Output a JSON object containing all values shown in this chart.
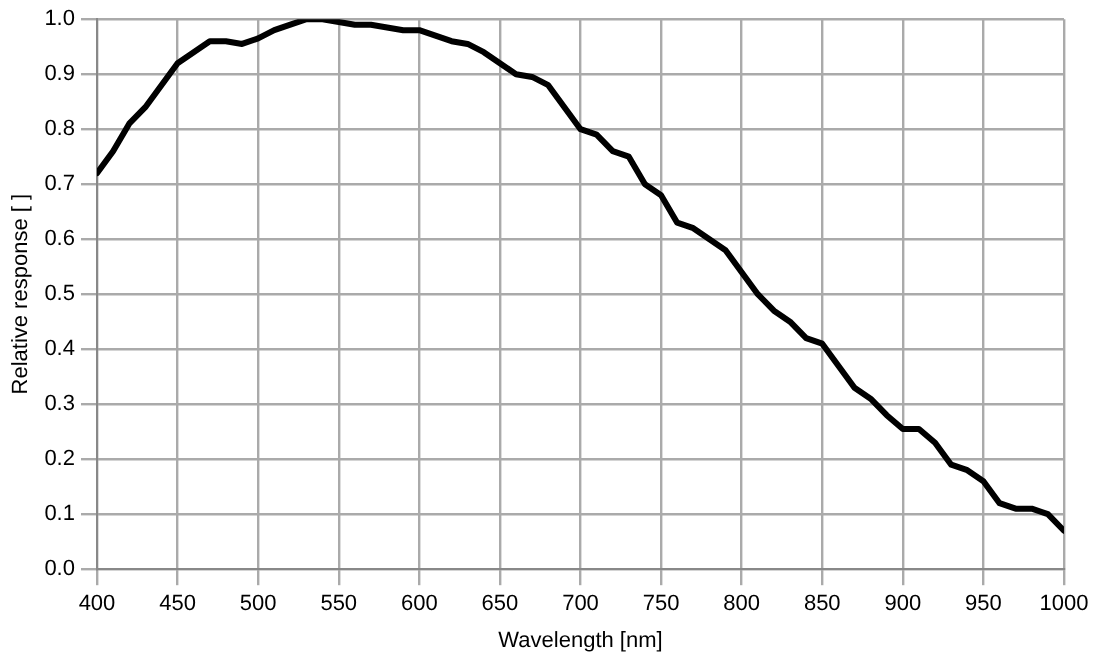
{
  "chart_data": {
    "type": "line",
    "xlabel": "Wavelength [nm]",
    "ylabel": "Relative response [ ]",
    "x": [
      400,
      410,
      420,
      430,
      440,
      450,
      460,
      470,
      480,
      490,
      500,
      510,
      520,
      530,
      540,
      550,
      560,
      570,
      580,
      590,
      600,
      610,
      620,
      630,
      640,
      650,
      660,
      670,
      680,
      690,
      700,
      710,
      720,
      730,
      740,
      750,
      760,
      770,
      780,
      790,
      800,
      810,
      820,
      830,
      840,
      850,
      860,
      870,
      880,
      890,
      900,
      910,
      920,
      930,
      940,
      950,
      960,
      970,
      980,
      990,
      1000
    ],
    "series": [
      {
        "color": "#000000",
        "values": [
          0.72,
          0.76,
          0.81,
          0.84,
          0.88,
          0.92,
          0.94,
          0.96,
          0.96,
          0.955,
          0.965,
          0.98,
          0.99,
          1.0,
          1.0,
          0.995,
          0.99,
          0.99,
          0.985,
          0.98,
          0.98,
          0.97,
          0.96,
          0.955,
          0.94,
          0.92,
          0.9,
          0.895,
          0.88,
          0.84,
          0.8,
          0.79,
          0.76,
          0.75,
          0.7,
          0.68,
          0.63,
          0.62,
          0.6,
          0.58,
          0.54,
          0.5,
          0.47,
          0.45,
          0.42,
          0.41,
          0.37,
          0.33,
          0.31,
          0.28,
          0.255,
          0.255,
          0.23,
          0.19,
          0.18,
          0.16,
          0.12,
          0.11,
          0.11,
          0.1,
          0.07
        ]
      }
    ],
    "xlim": [
      400,
      1000
    ],
    "xticks": [
      400,
      450,
      500,
      550,
      600,
      650,
      700,
      750,
      800,
      850,
      900,
      950,
      1000
    ],
    "ylim": [
      0,
      1
    ],
    "yticks": [
      {
        "value": 0,
        "label": "0.0"
      },
      {
        "value": 0.1,
        "label": "0.1"
      },
      {
        "value": 0.2,
        "label": "0.2"
      },
      {
        "value": 0.3,
        "label": "0.3"
      },
      {
        "value": 0.4,
        "label": "0.4"
      },
      {
        "value": 0.5,
        "label": "0.5"
      },
      {
        "value": 0.6,
        "label": "0.6"
      },
      {
        "value": 0.7,
        "label": "0.7"
      },
      {
        "value": 0.8,
        "label": "0.8"
      },
      {
        "value": 0.9,
        "label": "0.9"
      },
      {
        "value": 1,
        "label": "1.0"
      }
    ],
    "grid": true,
    "legend": false,
    "marker": "none",
    "line_style": "solid"
  }
}
